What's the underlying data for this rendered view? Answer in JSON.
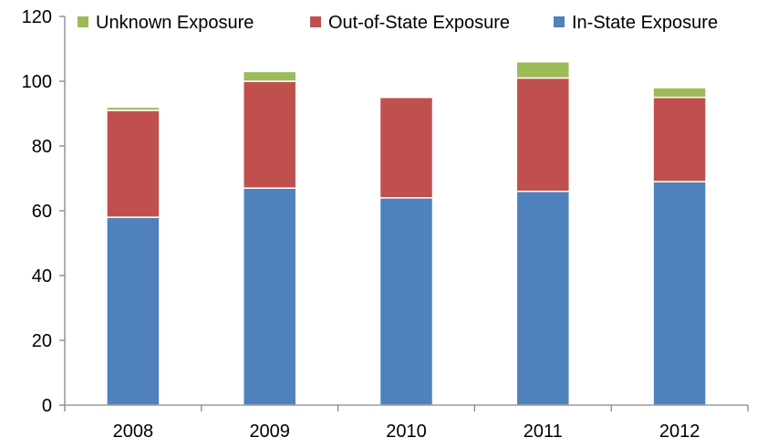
{
  "chart_data": {
    "type": "bar",
    "stacked": true,
    "categories": [
      "2008",
      "2009",
      "2010",
      "2011",
      "2012"
    ],
    "series": [
      {
        "name": "In-State Exposure",
        "color": "#4f81bd",
        "values": [
          58,
          67,
          64,
          66,
          69
        ]
      },
      {
        "name": "Out-of-State Exposure",
        "color": "#c0504d",
        "values": [
          33,
          33,
          31,
          35,
          26
        ]
      },
      {
        "name": "Unknown Exposure",
        "color": "#9bbb59",
        "values": [
          1,
          3,
          0,
          5,
          3
        ]
      }
    ],
    "legend_order": [
      "Unknown Exposure",
      "Out-of-State Exposure",
      "In-State Exposure"
    ],
    "legend_position": "top",
    "title": "",
    "xlabel": "",
    "ylabel": "",
    "ylim": [
      0,
      120
    ],
    "y_ticks": [
      "0",
      "20",
      "40",
      "60",
      "80",
      "100",
      "120"
    ],
    "grid": false
  }
}
